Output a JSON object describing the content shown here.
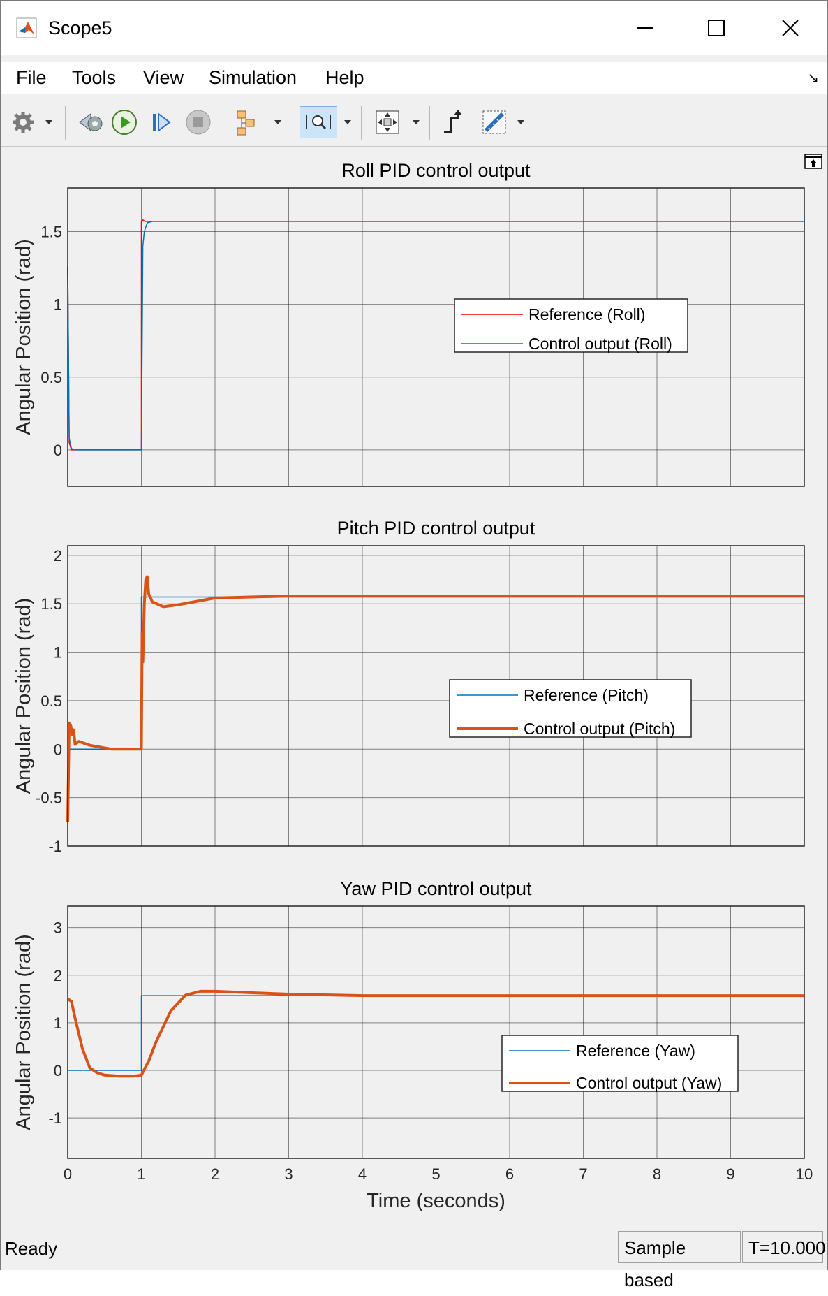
{
  "window": {
    "title": "Scope5"
  },
  "menu": {
    "items": [
      "File",
      "Tools",
      "View",
      "Simulation",
      "Help"
    ]
  },
  "toolbar": {
    "buttons": [
      {
        "name": "configuration-properties",
        "icon": "gear-icon"
      },
      {
        "name": "step-back",
        "icon": "step-back-icon"
      },
      {
        "name": "run",
        "icon": "play-icon"
      },
      {
        "name": "step-forward",
        "icon": "step-forward-icon"
      },
      {
        "name": "stop",
        "icon": "stop-icon"
      },
      {
        "name": "highlight-block",
        "icon": "highlight-block-icon"
      },
      {
        "name": "zoom",
        "icon": "zoom-x-icon"
      },
      {
        "name": "autoscale",
        "icon": "autoscale-icon"
      },
      {
        "name": "triggers",
        "icon": "trigger-icon"
      },
      {
        "name": "cursor-measurements",
        "icon": "ruler-icon"
      }
    ]
  },
  "colors": {
    "blue": "#0072BD",
    "orange": "#D95319",
    "red": "#FF0000",
    "plot_bg": "#F0F0F0",
    "grid": "#262626"
  },
  "chart_data": [
    {
      "type": "line",
      "title": "Roll PID control output",
      "ylabel": "Angular Position (rad)",
      "xlabel": "",
      "xlim": [
        0,
        10
      ],
      "ylim": [
        -0.25,
        1.8
      ],
      "yticks": [
        0,
        0.5,
        1,
        1.5
      ],
      "ytick_labels": [
        "0",
        "0.5",
        "1",
        "1.5"
      ],
      "xticks": [
        0,
        1,
        2,
        3,
        4,
        5,
        6,
        7,
        8,
        9,
        10
      ],
      "xtick_labels": [],
      "grid": true,
      "legend_position": "middle-right",
      "series": [
        {
          "name": "Reference (Roll)",
          "color": "#FF0000",
          "width": 1.5,
          "x": [
            0,
            0.02,
            0.05,
            1.0,
            1.0,
            1.02,
            1.05,
            10
          ],
          "y": [
            1.26,
            0.05,
            0,
            0,
            1.57,
            1.58,
            1.57,
            1.57
          ]
        },
        {
          "name": "Control output (Roll)",
          "color": "#0072BD",
          "width": 1.5,
          "x": [
            0,
            0.02,
            0.05,
            0.1,
            1.0,
            1.02,
            1.04,
            1.08,
            1.15,
            10
          ],
          "y": [
            1.26,
            0.08,
            0.01,
            0,
            0,
            1.4,
            1.5,
            1.56,
            1.57,
            1.57
          ]
        }
      ]
    },
    {
      "type": "line",
      "title": "Pitch PID control output",
      "ylabel": "Angular Position (rad)",
      "xlabel": "",
      "xlim": [
        0,
        10
      ],
      "ylim": [
        -1,
        2.1
      ],
      "yticks": [
        -1,
        -0.5,
        0,
        0.5,
        1,
        1.5,
        2
      ],
      "ytick_labels": [
        "-1",
        "-0.5",
        "0",
        "0.5",
        "1",
        "1.5",
        "2"
      ],
      "xticks": [
        0,
        1,
        2,
        3,
        4,
        5,
        6,
        7,
        8,
        9,
        10
      ],
      "xtick_labels": [],
      "grid": true,
      "legend_position": "lower-right",
      "series": [
        {
          "name": "Reference (Pitch)",
          "color": "#0072BD",
          "width": 1.5,
          "x": [
            0,
            1.0,
            1.0,
            10
          ],
          "y": [
            0,
            0,
            1.57,
            1.57
          ]
        },
        {
          "name": "Control output (Pitch)",
          "color": "#D95319",
          "width": 4,
          "x": [
            0,
            0.02,
            0.04,
            0.06,
            0.08,
            0.1,
            0.15,
            0.3,
            0.6,
            1.0,
            1.01,
            1.02,
            1.04,
            1.06,
            1.08,
            1.1,
            1.15,
            1.3,
            1.5,
            2.0,
            3.0,
            10
          ],
          "y": [
            -0.75,
            0.27,
            0.25,
            0.15,
            0.2,
            0.05,
            0.08,
            0.04,
            0.0,
            0.0,
            1.2,
            0.9,
            1.5,
            1.75,
            1.78,
            1.6,
            1.52,
            1.47,
            1.49,
            1.56,
            1.58,
            1.58
          ]
        }
      ]
    },
    {
      "type": "line",
      "title": "Yaw PID control output",
      "ylabel": "Angular Position (rad)",
      "xlabel": "Time (seconds)",
      "xlim": [
        0,
        10
      ],
      "ylim": [
        -1.85,
        3.45
      ],
      "yticks": [
        -1,
        0,
        1,
        2,
        3
      ],
      "ytick_labels": [
        "-1",
        "0",
        "1",
        "2",
        "3"
      ],
      "xticks": [
        0,
        1,
        2,
        3,
        4,
        5,
        6,
        7,
        8,
        9,
        10
      ],
      "xtick_labels": [
        "0",
        "1",
        "2",
        "3",
        "4",
        "5",
        "6",
        "7",
        "8",
        "9",
        "10"
      ],
      "grid": true,
      "legend_position": "lower-right",
      "series": [
        {
          "name": "Reference (Yaw)",
          "color": "#0072BD",
          "width": 1.5,
          "x": [
            0,
            1.0,
            1.0,
            10
          ],
          "y": [
            0,
            0,
            1.57,
            1.57
          ]
        },
        {
          "name": "Control output (Yaw)",
          "color": "#D95319",
          "width": 4,
          "x": [
            0,
            0.05,
            0.1,
            0.2,
            0.3,
            0.4,
            0.5,
            0.7,
            0.9,
            1.0,
            1.1,
            1.2,
            1.4,
            1.6,
            1.8,
            2.0,
            2.5,
            3.0,
            4.0,
            10
          ],
          "y": [
            1.5,
            1.45,
            1.1,
            0.45,
            0.05,
            -0.05,
            -0.1,
            -0.12,
            -0.12,
            -0.1,
            0.2,
            0.6,
            1.25,
            1.58,
            1.66,
            1.66,
            1.63,
            1.6,
            1.57,
            1.57
          ]
        }
      ]
    }
  ],
  "status": {
    "text": "Ready",
    "mode": "Sample based",
    "time": "T=10.000"
  }
}
